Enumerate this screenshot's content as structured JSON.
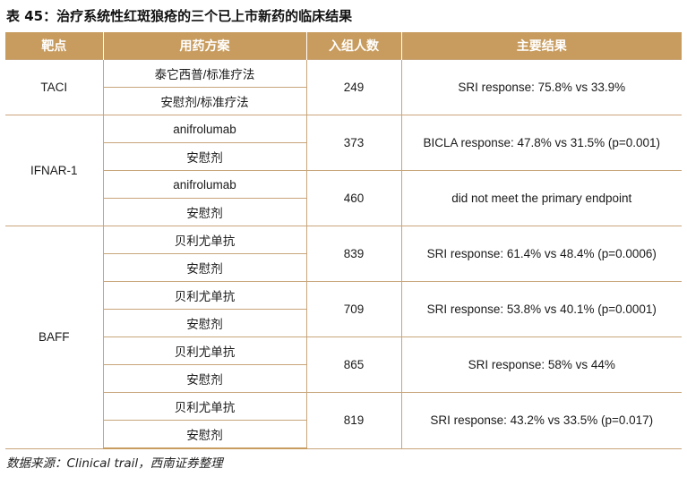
{
  "title": "表 45：治疗系统性红斑狼疮的三个已上市新药的临床结果",
  "headers": [
    "靶点",
    "用药方案",
    "入组人数",
    "主要结果"
  ],
  "rows": {
    "taci": {
      "target": "TACI",
      "regimen_1": "泰它西普/标准疗法",
      "regimen_2": "安慰剂/标准疗法",
      "enrolled": "249",
      "result": "SRI response: 75.8% vs 33.9%"
    },
    "ifnar1": {
      "target": "IFNAR-1",
      "trials": [
        {
          "regimen_1": "anifrolumab",
          "regimen_2": "安慰剂",
          "enrolled": "373",
          "result": "BICLA response: 47.8% vs 31.5% (p=0.001)"
        },
        {
          "regimen_1": "anifrolumab",
          "regimen_2": "安慰剂",
          "enrolled": "460",
          "result": "did not meet the primary endpoint"
        }
      ]
    },
    "baff": {
      "target": "BAFF",
      "trials": [
        {
          "regimen_1": "贝利尤单抗",
          "regimen_2": "安慰剂",
          "enrolled": "839",
          "result": "SRI response: 61.4% vs 48.4% (p=0.0006)"
        },
        {
          "regimen_1": "贝利尤单抗",
          "regimen_2": "安慰剂",
          "enrolled": "709",
          "result": "SRI response: 53.8% vs 40.1% (p=0.0001)"
        },
        {
          "regimen_1": "贝利尤单抗",
          "regimen_2": "安慰剂",
          "enrolled": "865",
          "result": "SRI response: 58% vs 44%"
        },
        {
          "regimen_1": "贝利尤单抗",
          "regimen_2": "安慰剂",
          "enrolled": "819",
          "result": "SRI response: 43.2% vs 33.5% (p=0.017)"
        }
      ]
    }
  },
  "source": "数据来源：Clinical trail，西南证券整理",
  "colors": {
    "header_bg": "#c89c5e",
    "border": "#c8a57a"
  }
}
